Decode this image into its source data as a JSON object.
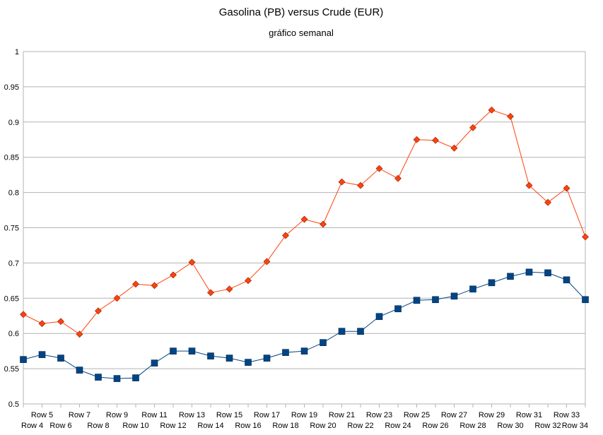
{
  "chart_data": {
    "type": "line",
    "title": "Gasolina (PB)  versus Crude (EUR)",
    "subtitle": "gráfico semanal",
    "xlabel": "",
    "ylabel": "",
    "ylim": [
      0.5,
      1
    ],
    "yticks": [
      "0.5",
      "0.55",
      "0.6",
      "0.65",
      "0.7",
      "0.75",
      "0.8",
      "0.85",
      "0.9",
      "0.95",
      "1"
    ],
    "grid": true,
    "legend": "none",
    "categories": [
      "Row 4",
      "Row 5",
      "Row 6",
      "Row 7",
      "Row 8",
      "Row 9",
      "Row 10",
      "Row 11",
      "Row 12",
      "Row 13",
      "Row 14",
      "Row 15",
      "Row 16",
      "Row 17",
      "Row 18",
      "Row 19",
      "Row 20",
      "Row 21",
      "Row 22",
      "Row 23",
      "Row 24",
      "Row 25",
      "Row 26",
      "Row 27",
      "Row 28",
      "Row 29",
      "Row 30",
      "Row 31",
      "Row 32",
      "Row 33",
      "Row 34"
    ],
    "series": [
      {
        "color": "#ff420e",
        "marker": "diamond",
        "marker_color": "#ff420e",
        "values": [
          0.627,
          0.614,
          0.617,
          0.599,
          0.632,
          0.65,
          0.67,
          0.668,
          0.683,
          0.701,
          0.658,
          0.663,
          0.675,
          0.702,
          0.739,
          0.762,
          0.755,
          0.815,
          0.81,
          0.834,
          0.82,
          0.875,
          0.874,
          0.863,
          0.892,
          0.917,
          0.908,
          0.81,
          0.786,
          0.806,
          0.737
        ]
      },
      {
        "color": "#004586",
        "marker": "square",
        "marker_color": "#004586",
        "values": [
          0.563,
          0.57,
          0.565,
          0.548,
          0.538,
          0.536,
          0.537,
          0.558,
          0.575,
          0.575,
          0.568,
          0.565,
          0.559,
          0.565,
          0.573,
          0.575,
          0.587,
          0.603,
          0.603,
          0.624,
          0.635,
          0.647,
          0.648,
          0.653,
          0.663,
          0.672,
          0.681,
          0.687,
          0.686,
          0.676,
          0.648
        ]
      }
    ]
  }
}
